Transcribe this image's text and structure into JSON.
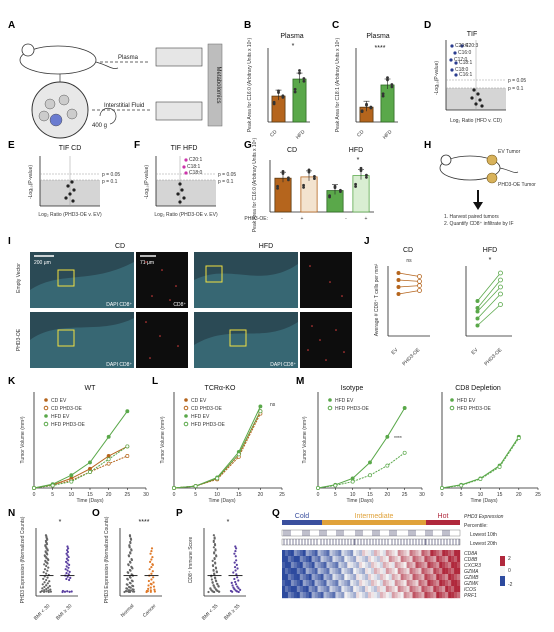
{
  "figure": {
    "panels": {
      "A": {
        "label": "A",
        "plasma": "Plasma",
        "tif": "Interstitial Fluid",
        "g": "400 g",
        "metabolomics": "Metabolomics"
      },
      "B": {
        "label": "B",
        "title": "Plasma",
        "ylabel": "Peak Area for C16:0 (Arbitrary Units x 10⁵)",
        "sig": "*",
        "categories": [
          "CD",
          "HFD"
        ]
      },
      "C": {
        "label": "C",
        "title": "Plasma",
        "ylabel": "Peak Area for C18:1 (Arbitrary Units x 10⁵)",
        "sig": "****",
        "categories": [
          "CD",
          "HFD"
        ]
      },
      "D": {
        "label": "D",
        "title": "TIF",
        "ylabel": "-Log₁₀(P-value)",
        "xlabel": "Log₂ Ratio (HFD v. CD)",
        "p1": "p = 0.05",
        "p2": "p = 0.1",
        "points": [
          "C20:4",
          "C20:3",
          "C16:0",
          "C17:0",
          "C18:1",
          "C18:0",
          "C16:1"
        ]
      },
      "E": {
        "label": "E",
        "title": "TIF CD",
        "ylabel": "-Log₁₀(P-value)",
        "xlabel": "Log₂ Ratio (PHD3-OE v. EV)",
        "p1": "p = 0.05",
        "p2": "p = 0.1"
      },
      "F": {
        "label": "F",
        "title": "TIF HFD",
        "ylabel": "-Log₁₀(P-value)",
        "xlabel": "Log₂ Ratio (PHD3-OE v. EV)",
        "p1": "p = 0.05",
        "p2": "p = 0.1",
        "points": [
          "C20:1",
          "C18:1",
          "C18:0"
        ]
      },
      "G": {
        "label": "G",
        "t1": "CD",
        "t2": "HFD",
        "ylabel": "Peak Area for C16:0 (Arbitrary Units x 10⁵)",
        "xrow": "PHD3-OE:",
        "signs": [
          "-",
          "+",
          "-",
          "+"
        ],
        "sig": "*"
      },
      "H": {
        "label": "H",
        "ev": "EV Tumor",
        "oe": "PHD3-OE Tumor",
        "step1": "1. Harvest paired tumors",
        "step2": "2. Quantify CD8⁺ infiltrate by IF"
      },
      "I": {
        "label": "I",
        "cd": "CD",
        "hfd": "HFD",
        "scale1": "200 μm",
        "scale2": "71 μm",
        "row1": "Empty Vector",
        "row2": "PHD3-OE",
        "dapi": "DAPI CD8⁺",
        "cd8": "CD8⁺"
      },
      "J": {
        "label": "J",
        "t1": "CD",
        "t2": "HFD",
        "ylabel": "Average # CD8⁺ T cells per mm²",
        "ns": "ns",
        "sig": "*",
        "x": [
          "EV",
          "PHD3-OE"
        ]
      },
      "K": {
        "label": "K",
        "title": "WT",
        "ylabel": "Tumor Volume (mm³)",
        "xlabel": "Time (Days)",
        "legend": [
          "CD EV",
          "CD PHD3-OE",
          "HFD EV",
          "HFD PHD3-OE"
        ]
      },
      "L": {
        "label": "L",
        "title": "TCRα-KO",
        "ylabel": "Tumor Volume (mm³)",
        "xlabel": "Time (Days)",
        "ns": "ns",
        "legend": [
          "CD EV",
          "CD PHD3-OE",
          "HFD EV",
          "HFD PHD3-OE"
        ]
      },
      "M": {
        "label": "M",
        "t1": "Isotype",
        "t2": "CD8 Depletion",
        "ylabel": "Tumor Volume (mm³)",
        "xlabel": "Time (Days)",
        "legend": [
          "HFD EV",
          "HFD PHD3-OE"
        ],
        "sig": "****"
      },
      "N": {
        "label": "N",
        "ylabel": "PHD3 Expression (Normalized Counts)",
        "sig": "*",
        "x": [
          "BMI < 30",
          "BMI ≥ 30"
        ]
      },
      "O": {
        "label": "O",
        "ylabel": "PHD3 Expression (Normalized Counts)",
        "sig": "****",
        "x": [
          "Normal",
          "Cancer"
        ]
      },
      "P": {
        "label": "P",
        "ylabel": "CD8⁺ Immune Score",
        "sig": "*",
        "x": [
          "BMI < 35",
          "BMI ≥ 35"
        ]
      },
      "Q": {
        "label": "Q",
        "cold": "Cold",
        "intermediate": "Intermediate",
        "hot": "Hot",
        "phd3": "PHD3 Expression",
        "percentile": "Percentile:",
        "lowest10": "Lowest 10th",
        "lowest20": "Lowest 20th",
        "genes": [
          "CD8A",
          "CD8B",
          "CXCR3",
          "GZMA",
          "GZMB",
          "GZMK",
          "ICOS",
          "PRF1"
        ],
        "scale": [
          "2",
          "0",
          "-2"
        ]
      }
    },
    "colors": {
      "cd": "#b5651d",
      "hfd": "#5aa84a",
      "magenta": "#cc33aa",
      "blue": "#2b3d8f",
      "cold": "#3a4f9e",
      "intermediate": "#e0a23a",
      "hot": "#b0283c"
    }
  },
  "chart_data": [
    {
      "panel": "B",
      "type": "bar",
      "categories": [
        "CD",
        "HFD"
      ],
      "values": [
        3.5,
        5.8
      ],
      "ylim": [
        0,
        10
      ]
    },
    {
      "panel": "C",
      "type": "bar",
      "categories": [
        "CD",
        "HFD"
      ],
      "values": [
        2.0,
        5.0
      ],
      "ylim": [
        0,
        10
      ]
    },
    {
      "panel": "G",
      "type": "bar",
      "categories": [
        "CD -",
        "CD +",
        "HFD -",
        "HFD +"
      ],
      "values": [
        5.2,
        5.4,
        3.3,
        5.6
      ],
      "ylim": [
        0,
        8
      ]
    },
    {
      "panel": "K",
      "type": "line",
      "x": [
        0,
        5,
        10,
        15,
        20,
        25
      ],
      "series": [
        {
          "name": "CD EV",
          "values": [
            0,
            50,
            150,
            300,
            500,
            650
          ]
        },
        {
          "name": "CD PHD3-OE",
          "values": [
            0,
            40,
            120,
            250,
            380,
            500
          ]
        },
        {
          "name": "HFD EV",
          "values": [
            0,
            60,
            200,
            400,
            800,
            1200
          ]
        },
        {
          "name": "HFD PHD3-OE",
          "values": [
            0,
            40,
            100,
            250,
            450,
            650
          ]
        }
      ],
      "ylim": [
        0,
        1500
      ],
      "xlim": [
        0,
        30
      ]
    },
    {
      "panel": "L",
      "type": "line",
      "x": [
        0,
        5,
        10,
        15,
        20
      ],
      "series": [
        {
          "name": "CD EV",
          "values": [
            0,
            40,
            200,
            700,
            1600
          ]
        },
        {
          "name": "CD PHD3-OE",
          "values": [
            0,
            40,
            180,
            650,
            1550
          ]
        },
        {
          "name": "HFD EV",
          "values": [
            0,
            40,
            220,
            750,
            1700
          ]
        },
        {
          "name": "HFD PHD3-OE",
          "values": [
            0,
            40,
            200,
            700,
            1600
          ]
        }
      ],
      "ylim": [
        0,
        2000
      ],
      "xlim": [
        0,
        25
      ]
    },
    {
      "panel": "M-iso",
      "type": "line",
      "x": [
        0,
        5,
        10,
        15,
        20,
        25
      ],
      "series": [
        {
          "name": "HFD EV",
          "values": [
            0,
            50,
            150,
            400,
            800,
            1250
          ]
        },
        {
          "name": "HFD PHD3-OE",
          "values": [
            0,
            40,
            100,
            200,
            350,
            550
          ]
        }
      ],
      "ylim": [
        0,
        1500
      ],
      "xlim": [
        0,
        30
      ]
    },
    {
      "panel": "M-cd8",
      "type": "line",
      "x": [
        0,
        5,
        10,
        15,
        20
      ],
      "series": [
        {
          "name": "HFD EV",
          "values": [
            0,
            50,
            150,
            350,
            800
          ]
        },
        {
          "name": "HFD PHD3-OE",
          "values": [
            0,
            40,
            140,
            330,
            780
          ]
        }
      ],
      "ylim": [
        0,
        1500
      ],
      "xlim": [
        0,
        25
      ]
    },
    {
      "panel": "J-CD",
      "type": "line",
      "x": [
        "EV",
        "PHD3-OE"
      ],
      "series": [
        {
          "values": [
            900,
            850
          ]
        },
        {
          "values": [
            800,
            780
          ]
        },
        {
          "values": [
            700,
            720
          ]
        },
        {
          "values": [
            600,
            650
          ]
        }
      ],
      "ylim": [
        0,
        1000
      ]
    },
    {
      "panel": "J-HFD",
      "type": "line",
      "x": [
        "EV",
        "PHD3-OE"
      ],
      "series": [
        {
          "values": [
            500,
            900
          ]
        },
        {
          "values": [
            400,
            800
          ]
        },
        {
          "values": [
            350,
            700
          ]
        },
        {
          "values": [
            250,
            600
          ]
        },
        {
          "values": [
            150,
            450
          ]
        }
      ],
      "ylim": [
        0,
        1000
      ]
    }
  ]
}
